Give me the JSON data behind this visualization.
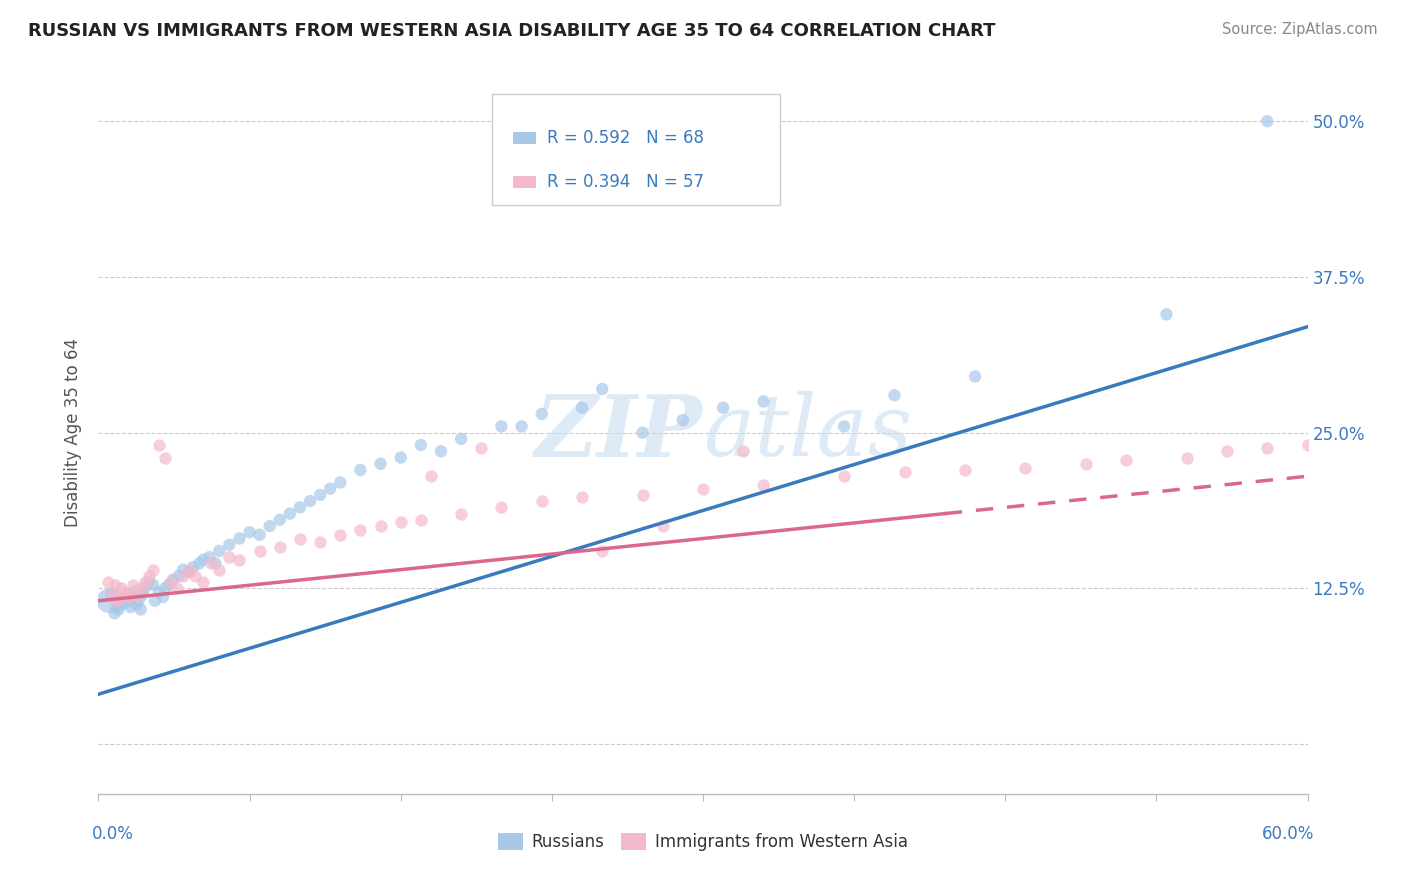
{
  "title": "RUSSIAN VS IMMIGRANTS FROM WESTERN ASIA DISABILITY AGE 35 TO 64 CORRELATION CHART",
  "source": "Source: ZipAtlas.com",
  "ylabel": "Disability Age 35 to 64",
  "color_blue": "#a8c8e8",
  "color_pink": "#f4b8cb",
  "trendline_blue": "#3a7abf",
  "trendline_pink": "#d9688a",
  "watermark_color": "#c8dff0",
  "xlim": [
    0.0,
    0.6
  ],
  "ylim": [
    -0.04,
    0.54
  ],
  "ytick_values": [
    0.0,
    0.125,
    0.25,
    0.375,
    0.5
  ],
  "ytick_labels": [
    "",
    "12.5%",
    "25.0%",
    "37.5%",
    "50.0%"
  ],
  "russians_x": [
    0.005,
    0.007,
    0.008,
    0.009,
    0.01,
    0.01,
    0.011,
    0.012,
    0.013,
    0.014,
    0.015,
    0.016,
    0.017,
    0.018,
    0.019,
    0.02,
    0.021,
    0.022,
    0.023,
    0.025,
    0.027,
    0.028,
    0.03,
    0.032,
    0.033,
    0.035,
    0.037,
    0.04,
    0.042,
    0.045,
    0.047,
    0.05,
    0.052,
    0.055,
    0.058,
    0.06,
    0.065,
    0.07,
    0.075,
    0.08,
    0.085,
    0.09,
    0.095,
    0.1,
    0.105,
    0.11,
    0.115,
    0.12,
    0.13,
    0.14,
    0.15,
    0.16,
    0.17,
    0.18,
    0.2,
    0.21,
    0.22,
    0.24,
    0.25,
    0.27,
    0.29,
    0.31,
    0.33,
    0.37,
    0.395,
    0.435,
    0.53,
    0.58
  ],
  "russians_y": [
    0.115,
    0.12,
    0.105,
    0.11,
    0.115,
    0.108,
    0.112,
    0.118,
    0.113,
    0.12,
    0.115,
    0.11,
    0.118,
    0.122,
    0.112,
    0.115,
    0.108,
    0.12,
    0.125,
    0.13,
    0.128,
    0.115,
    0.122,
    0.118,
    0.125,
    0.128,
    0.132,
    0.135,
    0.14,
    0.138,
    0.142,
    0.145,
    0.148,
    0.15,
    0.145,
    0.155,
    0.16,
    0.165,
    0.17,
    0.168,
    0.175,
    0.18,
    0.185,
    0.19,
    0.195,
    0.2,
    0.205,
    0.21,
    0.22,
    0.225,
    0.23,
    0.24,
    0.235,
    0.245,
    0.255,
    0.255,
    0.265,
    0.27,
    0.285,
    0.25,
    0.26,
    0.27,
    0.275,
    0.255,
    0.28,
    0.295,
    0.345,
    0.5
  ],
  "russians_sizes": [
    300,
    120,
    80,
    80,
    80,
    80,
    80,
    80,
    80,
    80,
    80,
    80,
    80,
    80,
    80,
    80,
    80,
    80,
    80,
    80,
    80,
    80,
    80,
    80,
    80,
    80,
    80,
    80,
    80,
    80,
    80,
    80,
    80,
    80,
    80,
    80,
    80,
    80,
    80,
    80,
    80,
    80,
    80,
    80,
    80,
    80,
    80,
    80,
    80,
    80,
    80,
    80,
    80,
    80,
    80,
    80,
    80,
    80,
    80,
    80,
    80,
    80,
    80,
    80,
    80,
    80,
    80,
    80
  ],
  "immigrants_x": [
    0.005,
    0.007,
    0.008,
    0.009,
    0.01,
    0.011,
    0.013,
    0.015,
    0.017,
    0.019,
    0.021,
    0.023,
    0.025,
    0.027,
    0.03,
    0.033,
    0.036,
    0.039,
    0.042,
    0.045,
    0.048,
    0.052,
    0.056,
    0.06,
    0.065,
    0.07,
    0.08,
    0.09,
    0.1,
    0.11,
    0.12,
    0.13,
    0.14,
    0.15,
    0.16,
    0.18,
    0.2,
    0.22,
    0.24,
    0.27,
    0.3,
    0.33,
    0.37,
    0.4,
    0.43,
    0.46,
    0.49,
    0.51,
    0.54,
    0.56,
    0.58,
    0.6,
    0.28,
    0.165,
    0.32,
    0.25,
    0.19
  ],
  "immigrants_y": [
    0.13,
    0.12,
    0.128,
    0.115,
    0.118,
    0.125,
    0.122,
    0.118,
    0.128,
    0.12,
    0.125,
    0.13,
    0.135,
    0.14,
    0.24,
    0.23,
    0.13,
    0.125,
    0.135,
    0.14,
    0.135,
    0.13,
    0.145,
    0.14,
    0.15,
    0.148,
    0.155,
    0.158,
    0.165,
    0.162,
    0.168,
    0.172,
    0.175,
    0.178,
    0.18,
    0.185,
    0.19,
    0.195,
    0.198,
    0.2,
    0.205,
    0.208,
    0.215,
    0.218,
    0.22,
    0.222,
    0.225,
    0.228,
    0.23,
    0.235,
    0.238,
    0.24,
    0.175,
    0.215,
    0.235,
    0.155,
    0.238
  ],
  "trendline_r_x0": 0.0,
  "trendline_r_y0": 0.04,
  "trendline_r_x1": 0.6,
  "trendline_r_y1": 0.335,
  "trendline_i_x0": 0.0,
  "trendline_i_y0": 0.115,
  "trendline_i_x1": 0.6,
  "trendline_i_y1": 0.215,
  "trendline_i_solid_end": 0.42
}
